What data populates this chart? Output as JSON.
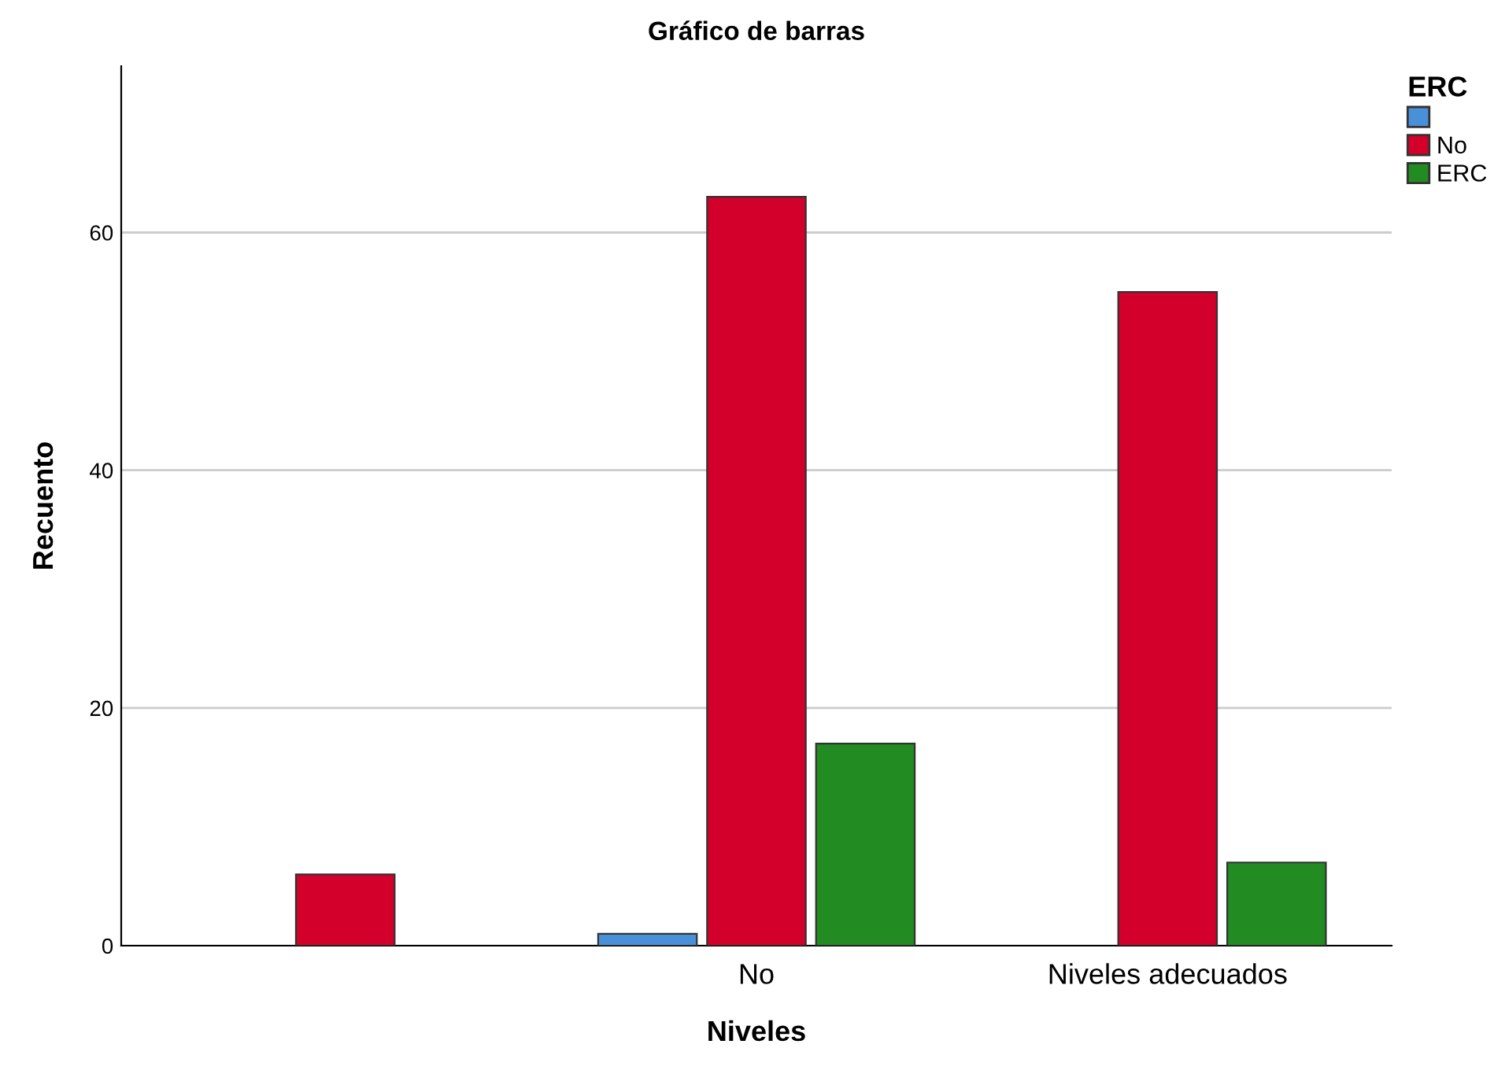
{
  "chart_data": {
    "type": "bar",
    "title": "Gráfico de barras",
    "xlabel": "Niveles",
    "ylabel": "Recuento",
    "legend_title": "ERC",
    "categories": [
      null,
      "No",
      "Niveles adecuados"
    ],
    "series": [
      {
        "color": "#4a90d9",
        "values": [
          null,
          1,
          null
        ]
      },
      {
        "name": "No",
        "color": "#d2002b",
        "values": [
          6,
          63,
          55
        ]
      },
      {
        "name": "ERC",
        "color": "#228b22",
        "values": [
          null,
          17,
          7
        ]
      }
    ],
    "ylim": [
      0,
      74
    ],
    "yticks": [
      0,
      20,
      40,
      60
    ],
    "grid": "y",
    "legend": "top right"
  }
}
